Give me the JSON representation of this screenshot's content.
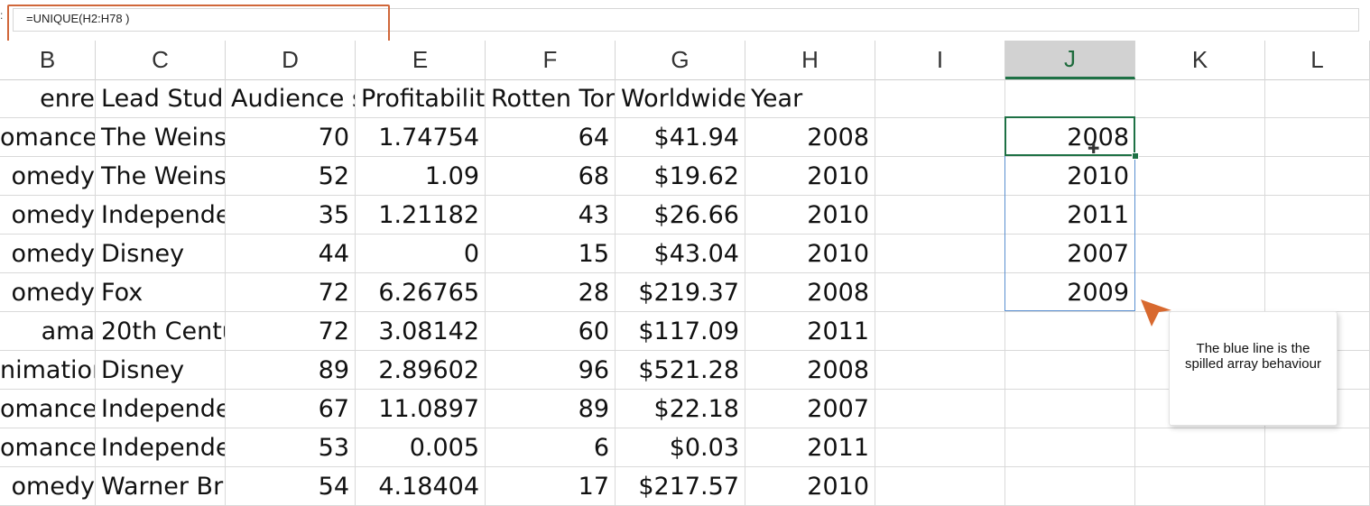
{
  "formula_bar": {
    "prefix": ":",
    "formula": "=UNIQUE(H2:H78 )"
  },
  "columns": [
    "B",
    "C",
    "D",
    "E",
    "F",
    "G",
    "H",
    "I",
    "J",
    "K",
    "L"
  ],
  "active_column": "J",
  "header_row": [
    "enre",
    "Lead Studi",
    "Audience s",
    "Profitabilit",
    "Rotten Tor",
    "Worldwide",
    "Year"
  ],
  "rows": [
    [
      "omance",
      "The Weins",
      "70",
      "1.74754",
      "64",
      "$41.94",
      "2008"
    ],
    [
      "omedy",
      "The Weins",
      "52",
      "1.09",
      "68",
      "$19.62",
      "2010"
    ],
    [
      "omedy",
      "Independe",
      "35",
      "1.21182",
      "43",
      "$26.66",
      "2010"
    ],
    [
      "omedy",
      "Disney",
      "44",
      "0",
      "15",
      "$43.04",
      "2010"
    ],
    [
      "omedy",
      "Fox",
      "72",
      "6.26765",
      "28",
      "$219.37",
      "2008"
    ],
    [
      "ama",
      "20th Centu",
      "72",
      "3.08142",
      "60",
      "$117.09",
      "2011"
    ],
    [
      "nimation",
      "Disney",
      "89",
      "2.89602",
      "96",
      "$521.28",
      "2008"
    ],
    [
      "omance",
      "Independe",
      "67",
      "11.0897",
      "89",
      "$22.18",
      "2007"
    ],
    [
      "omance",
      "Independe",
      "53",
      "0.005",
      "6",
      "$0.03",
      "2011"
    ],
    [
      "omedy",
      "Warner Br",
      "54",
      "4.18404",
      "17",
      "$217.57",
      "2010"
    ]
  ],
  "unique_years": [
    "2008",
    "2010",
    "2011",
    "2007",
    "2009"
  ],
  "callout": {
    "text": "The blue line is the spilled array behaviour"
  },
  "colors": {
    "callout_arrow": "#d8692f",
    "formula_highlight": "#d0673a",
    "spill_border": "#5a8fd0",
    "selection_border": "#1e7145"
  }
}
